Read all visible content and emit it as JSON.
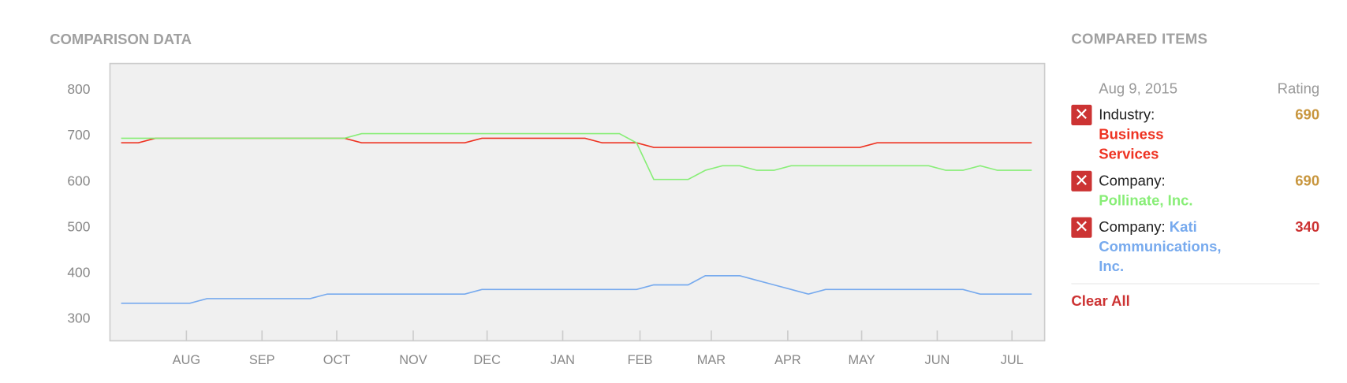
{
  "chart_data": {
    "type": "line",
    "title": "COMPARISON DATA",
    "ylim": [
      253,
      858
    ],
    "yticks": [
      300,
      400,
      500,
      600,
      700,
      800
    ],
    "xlim": [
      -0.65,
      53.75
    ],
    "xticks": [
      {
        "value": 3.8,
        "label": "AUG"
      },
      {
        "value": 8.2,
        "label": "SEP"
      },
      {
        "value": 12.55,
        "label": "OCT"
      },
      {
        "value": 17,
        "label": "NOV"
      },
      {
        "value": 21.3,
        "label": "DEC"
      },
      {
        "value": 25.7,
        "label": "JAN"
      },
      {
        "value": 30.2,
        "label": "FEB"
      },
      {
        "value": 34.35,
        "label": "MAR"
      },
      {
        "value": 38.8,
        "label": "APR"
      },
      {
        "value": 43.1,
        "label": "MAY"
      },
      {
        "value": 47.5,
        "label": "JUN"
      },
      {
        "value": 51.85,
        "label": "JUL"
      }
    ],
    "series": [
      {
        "name": "Business Services",
        "color": "#ee3322",
        "values": [
          685,
          685,
          695,
          695,
          695,
          695,
          695,
          695,
          695,
          695,
          695,
          695,
          695,
          695,
          685,
          685,
          685,
          685,
          685,
          685,
          685,
          695,
          695,
          695,
          695,
          695,
          695,
          695,
          685,
          685,
          685,
          675,
          675,
          675,
          675,
          675,
          675,
          675,
          675,
          675,
          675,
          675,
          675,
          675,
          685,
          685,
          685,
          685,
          685,
          685,
          685,
          685,
          685,
          685
        ]
      },
      {
        "name": "Pollinate, Inc.",
        "color": "#88ee77",
        "values": [
          695,
          695,
          695,
          695,
          695,
          695,
          695,
          695,
          695,
          695,
          695,
          695,
          695,
          695,
          705,
          705,
          705,
          705,
          705,
          705,
          705,
          705,
          705,
          705,
          705,
          705,
          705,
          705,
          705,
          705,
          685,
          605,
          605,
          605,
          625,
          635,
          635,
          625,
          625,
          635,
          635,
          635,
          635,
          635,
          635,
          635,
          635,
          635,
          625,
          625,
          635,
          625,
          625,
          625
        ]
      },
      {
        "name": "Kati Communications, Inc.",
        "color": "#77aaee",
        "values": [
          335,
          335,
          335,
          335,
          335,
          345,
          345,
          345,
          345,
          345,
          345,
          345,
          355,
          355,
          355,
          355,
          355,
          355,
          355,
          355,
          355,
          365,
          365,
          365,
          365,
          365,
          365,
          365,
          365,
          365,
          365,
          375,
          375,
          375,
          395,
          395,
          395,
          385,
          375,
          365,
          355,
          365,
          365,
          365,
          365,
          365,
          365,
          365,
          365,
          365,
          355,
          355,
          355,
          355
        ]
      }
    ]
  },
  "compared_items": {
    "title": "COMPARED ITEMS",
    "date": "Aug 9, 2015",
    "rating_header": "Rating",
    "items": [
      {
        "prefix": "Industry:",
        "rating": 690,
        "rating_color": "#c8963e"
      },
      {
        "prefix": "Company:",
        "rating": 690,
        "rating_color": "#c8963e"
      },
      {
        "prefix": "Company:",
        "rating": 340,
        "rating_color": "#cc3333"
      }
    ],
    "clear": "Clear All"
  }
}
